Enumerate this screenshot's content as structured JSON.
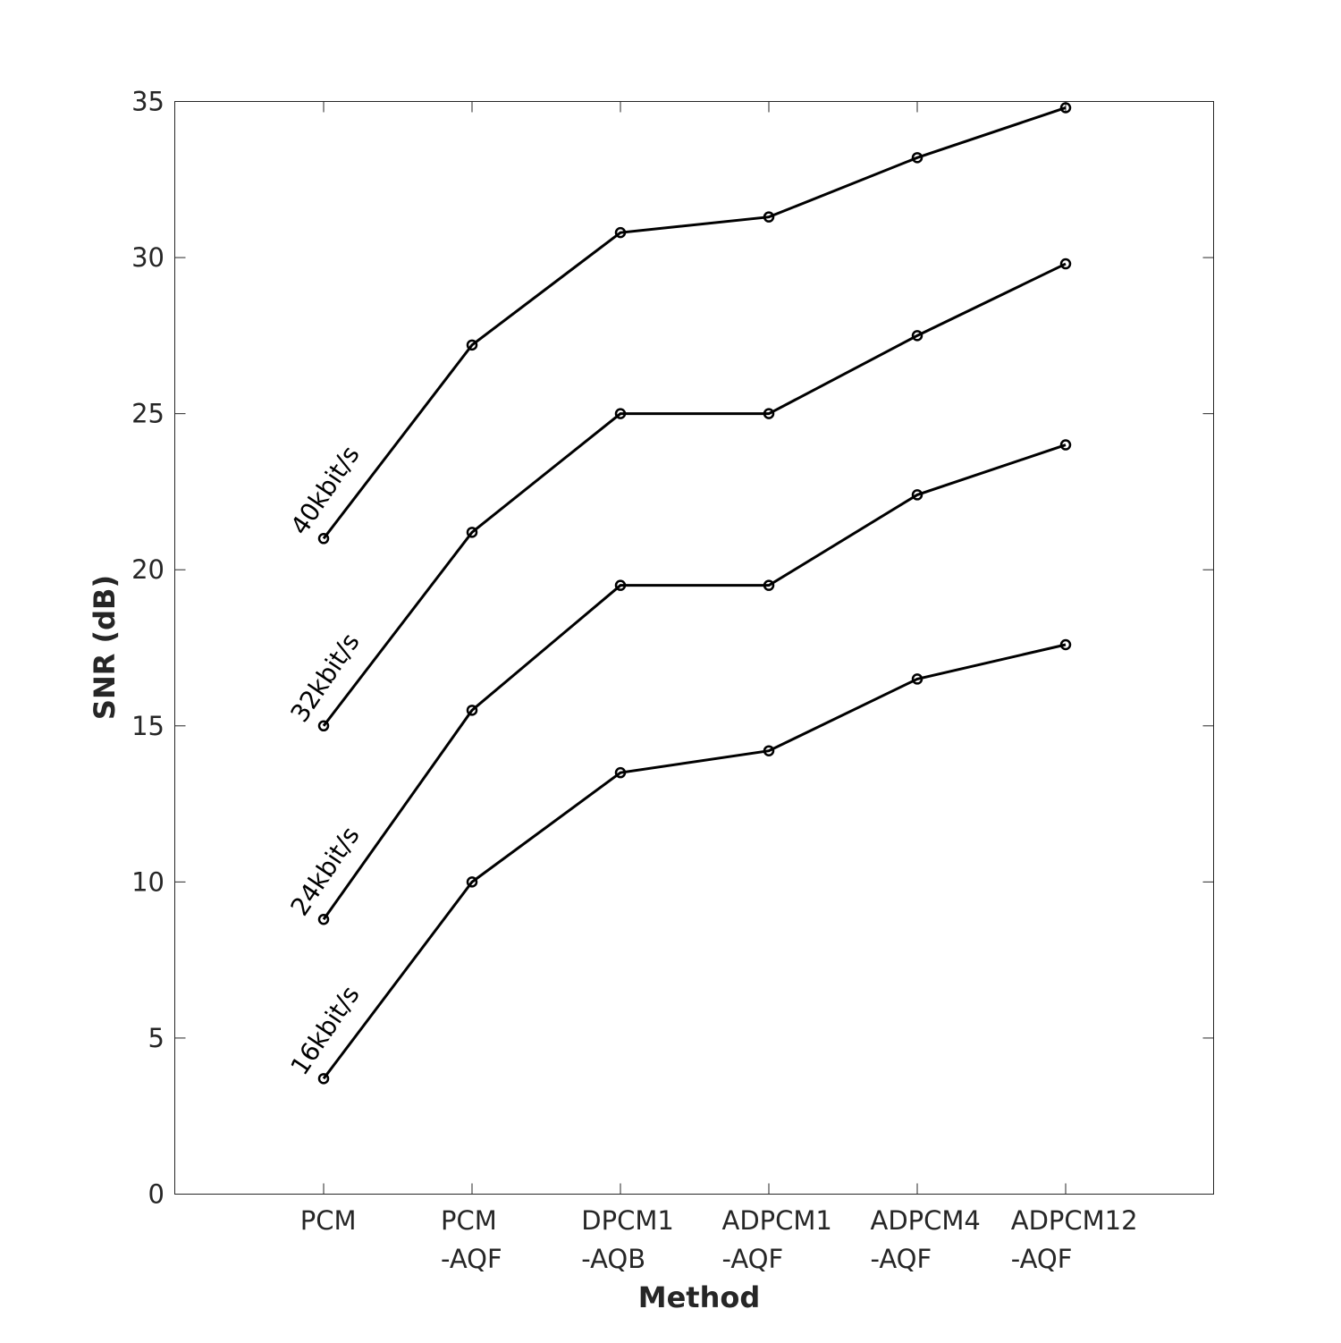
{
  "chart_data": {
    "type": "line",
    "categories": [
      [
        "PCM"
      ],
      [
        "PCM",
        "-AQF"
      ],
      [
        "DPCM1",
        "-AQB"
      ],
      [
        "ADPCM1",
        "-AQF"
      ],
      [
        "ADPCM4",
        "-AQF"
      ],
      [
        "ADPCM12",
        "-AQF"
      ]
    ],
    "xlabel": "Method",
    "ylabel": "SNR (dB)",
    "ylim": [
      0,
      35
    ],
    "yticks": [
      0,
      5,
      10,
      15,
      20,
      25,
      30,
      35
    ],
    "grid": false,
    "legend": "none",
    "series": [
      {
        "name": "40kbit/s",
        "values": [
          21.0,
          27.2,
          30.8,
          31.3,
          33.2,
          34.8
        ]
      },
      {
        "name": "32kbit/s",
        "values": [
          15.0,
          21.2,
          25.0,
          25.0,
          27.5,
          29.8
        ]
      },
      {
        "name": "24kbit/s",
        "values": [
          8.8,
          15.5,
          19.5,
          19.5,
          22.4,
          24.0
        ]
      },
      {
        "name": "16kbit/s",
        "values": [
          3.7,
          10.0,
          13.5,
          14.2,
          16.5,
          17.6
        ]
      }
    ],
    "line_color": "#000000",
    "marker": "circle"
  }
}
